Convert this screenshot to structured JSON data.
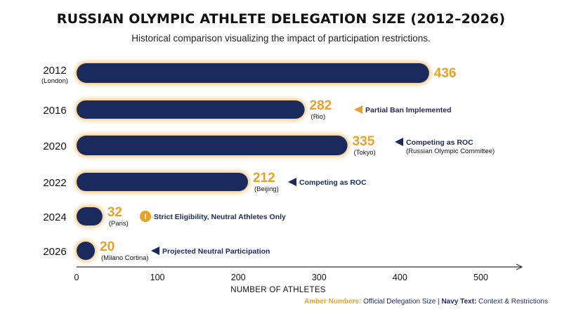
{
  "title": "RUSSIAN OLYMPIC ATHLETE DELEGATION SIZE (2012–2026)",
  "subtitle": "Historical comparison visualizing the impact of participation restrictions.",
  "footnote": {
    "amber_label": "Amber Numbers:",
    "amber_text": " Official Delegation Size | ",
    "navy_label": "Navy Text:",
    "navy_text": " Context & Restrictions"
  },
  "colors": {
    "bar": "#1b2a5c",
    "glow": "#f2a93b",
    "value": "#e8a22a",
    "note": "#1b2a5c",
    "axis": "#333333"
  },
  "chart_data": {
    "type": "bar",
    "orientation": "horizontal",
    "xlabel": "NUMBER OF ATHLETES",
    "xlim": [
      0,
      550
    ],
    "xticks": [
      "0",
      "100",
      "200",
      "300",
      "400",
      "500"
    ],
    "categories": [
      {
        "year": "2012",
        "host": "(London)"
      },
      {
        "year": "2016",
        "host": ""
      },
      {
        "year": "2020",
        "host": ""
      },
      {
        "year": "2022",
        "host": ""
      },
      {
        "year": "2024",
        "host": ""
      },
      {
        "year": "2026",
        "host": ""
      }
    ],
    "values": [
      436,
      282,
      335,
      212,
      32,
      20
    ],
    "value_labels": [
      "436",
      "282",
      "335",
      "212",
      "32",
      "20"
    ],
    "city_labels": [
      "",
      "(Rio)",
      "(Tokyo)",
      "(Beijing)",
      "(Paris)",
      "(Milano Cortina)"
    ],
    "annotations": [
      {
        "index": 1,
        "lines": [
          "Partial Ban Implemented"
        ],
        "marker": "arrow-left"
      },
      {
        "index": 2,
        "lines": [
          "Competing as ROC",
          "(Russian Olympic Committee)"
        ],
        "marker": "arrow-left"
      },
      {
        "index": 3,
        "lines": [
          "Competing as ROC"
        ],
        "marker": "arrow-left"
      },
      {
        "index": 4,
        "lines": [
          "Strict Eligibility, Neutral Athletes Only"
        ],
        "marker": "warning"
      },
      {
        "index": 5,
        "lines": [
          "Projected Neutral Participation"
        ],
        "marker": "arrow-left"
      }
    ]
  }
}
